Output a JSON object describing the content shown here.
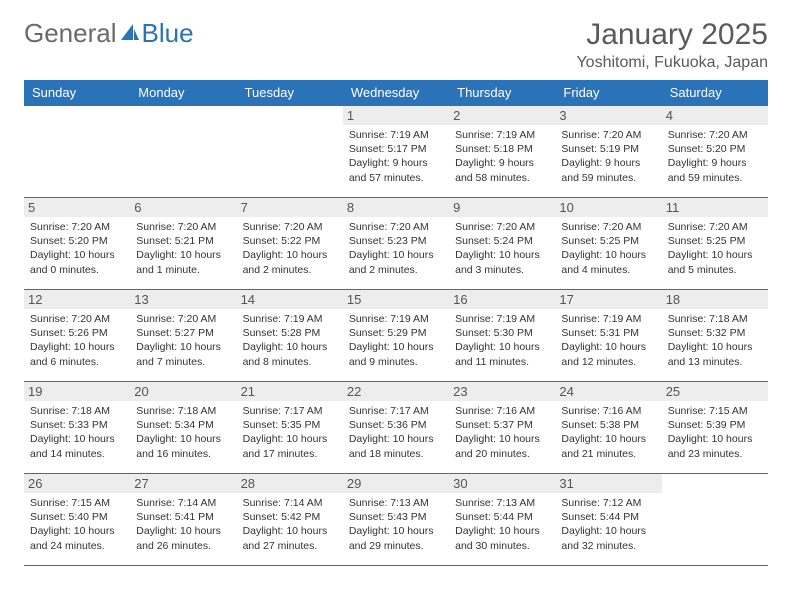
{
  "logo": {
    "text1": "General",
    "text2": "Blue"
  },
  "title": "January 2025",
  "location": "Yoshitomi, Fukuoka, Japan",
  "colors": {
    "header_bg": "#2a73b8",
    "header_text": "#ffffff",
    "daynum_bg": "#ededed",
    "border": "#2a73b8",
    "logo_general": "#6a6a6a",
    "logo_blue": "#2a73b8",
    "title_color": "#5a5a5a",
    "body_text": "#333333",
    "page_bg": "#ffffff"
  },
  "typography": {
    "month_title_fontsize": 30,
    "location_fontsize": 16,
    "day_header_fontsize": 13,
    "daynum_fontsize": 13,
    "cell_fontsize": 10.5,
    "logo_fontsize": 26
  },
  "day_headers": [
    "Sunday",
    "Monday",
    "Tuesday",
    "Wednesday",
    "Thursday",
    "Friday",
    "Saturday"
  ],
  "weeks": [
    [
      null,
      null,
      null,
      {
        "n": "1",
        "sunrise": "7:19 AM",
        "sunset": "5:17 PM",
        "daylight": "9 hours and 57 minutes."
      },
      {
        "n": "2",
        "sunrise": "7:19 AM",
        "sunset": "5:18 PM",
        "daylight": "9 hours and 58 minutes."
      },
      {
        "n": "3",
        "sunrise": "7:20 AM",
        "sunset": "5:19 PM",
        "daylight": "9 hours and 59 minutes."
      },
      {
        "n": "4",
        "sunrise": "7:20 AM",
        "sunset": "5:20 PM",
        "daylight": "9 hours and 59 minutes."
      }
    ],
    [
      {
        "n": "5",
        "sunrise": "7:20 AM",
        "sunset": "5:20 PM",
        "daylight": "10 hours and 0 minutes."
      },
      {
        "n": "6",
        "sunrise": "7:20 AM",
        "sunset": "5:21 PM",
        "daylight": "10 hours and 1 minute."
      },
      {
        "n": "7",
        "sunrise": "7:20 AM",
        "sunset": "5:22 PM",
        "daylight": "10 hours and 2 minutes."
      },
      {
        "n": "8",
        "sunrise": "7:20 AM",
        "sunset": "5:23 PM",
        "daylight": "10 hours and 2 minutes."
      },
      {
        "n": "9",
        "sunrise": "7:20 AM",
        "sunset": "5:24 PM",
        "daylight": "10 hours and 3 minutes."
      },
      {
        "n": "10",
        "sunrise": "7:20 AM",
        "sunset": "5:25 PM",
        "daylight": "10 hours and 4 minutes."
      },
      {
        "n": "11",
        "sunrise": "7:20 AM",
        "sunset": "5:25 PM",
        "daylight": "10 hours and 5 minutes."
      }
    ],
    [
      {
        "n": "12",
        "sunrise": "7:20 AM",
        "sunset": "5:26 PM",
        "daylight": "10 hours and 6 minutes."
      },
      {
        "n": "13",
        "sunrise": "7:20 AM",
        "sunset": "5:27 PM",
        "daylight": "10 hours and 7 minutes."
      },
      {
        "n": "14",
        "sunrise": "7:19 AM",
        "sunset": "5:28 PM",
        "daylight": "10 hours and 8 minutes."
      },
      {
        "n": "15",
        "sunrise": "7:19 AM",
        "sunset": "5:29 PM",
        "daylight": "10 hours and 9 minutes."
      },
      {
        "n": "16",
        "sunrise": "7:19 AM",
        "sunset": "5:30 PM",
        "daylight": "10 hours and 11 minutes."
      },
      {
        "n": "17",
        "sunrise": "7:19 AM",
        "sunset": "5:31 PM",
        "daylight": "10 hours and 12 minutes."
      },
      {
        "n": "18",
        "sunrise": "7:18 AM",
        "sunset": "5:32 PM",
        "daylight": "10 hours and 13 minutes."
      }
    ],
    [
      {
        "n": "19",
        "sunrise": "7:18 AM",
        "sunset": "5:33 PM",
        "daylight": "10 hours and 14 minutes."
      },
      {
        "n": "20",
        "sunrise": "7:18 AM",
        "sunset": "5:34 PM",
        "daylight": "10 hours and 16 minutes."
      },
      {
        "n": "21",
        "sunrise": "7:17 AM",
        "sunset": "5:35 PM",
        "daylight": "10 hours and 17 minutes."
      },
      {
        "n": "22",
        "sunrise": "7:17 AM",
        "sunset": "5:36 PM",
        "daylight": "10 hours and 18 minutes."
      },
      {
        "n": "23",
        "sunrise": "7:16 AM",
        "sunset": "5:37 PM",
        "daylight": "10 hours and 20 minutes."
      },
      {
        "n": "24",
        "sunrise": "7:16 AM",
        "sunset": "5:38 PM",
        "daylight": "10 hours and 21 minutes."
      },
      {
        "n": "25",
        "sunrise": "7:15 AM",
        "sunset": "5:39 PM",
        "daylight": "10 hours and 23 minutes."
      }
    ],
    [
      {
        "n": "26",
        "sunrise": "7:15 AM",
        "sunset": "5:40 PM",
        "daylight": "10 hours and 24 minutes."
      },
      {
        "n": "27",
        "sunrise": "7:14 AM",
        "sunset": "5:41 PM",
        "daylight": "10 hours and 26 minutes."
      },
      {
        "n": "28",
        "sunrise": "7:14 AM",
        "sunset": "5:42 PM",
        "daylight": "10 hours and 27 minutes."
      },
      {
        "n": "29",
        "sunrise": "7:13 AM",
        "sunset": "5:43 PM",
        "daylight": "10 hours and 29 minutes."
      },
      {
        "n": "30",
        "sunrise": "7:13 AM",
        "sunset": "5:44 PM",
        "daylight": "10 hours and 30 minutes."
      },
      {
        "n": "31",
        "sunrise": "7:12 AM",
        "sunset": "5:44 PM",
        "daylight": "10 hours and 32 minutes."
      },
      null
    ]
  ],
  "labels": {
    "sunrise": "Sunrise: ",
    "sunset": "Sunset: ",
    "daylight": "Daylight: "
  }
}
